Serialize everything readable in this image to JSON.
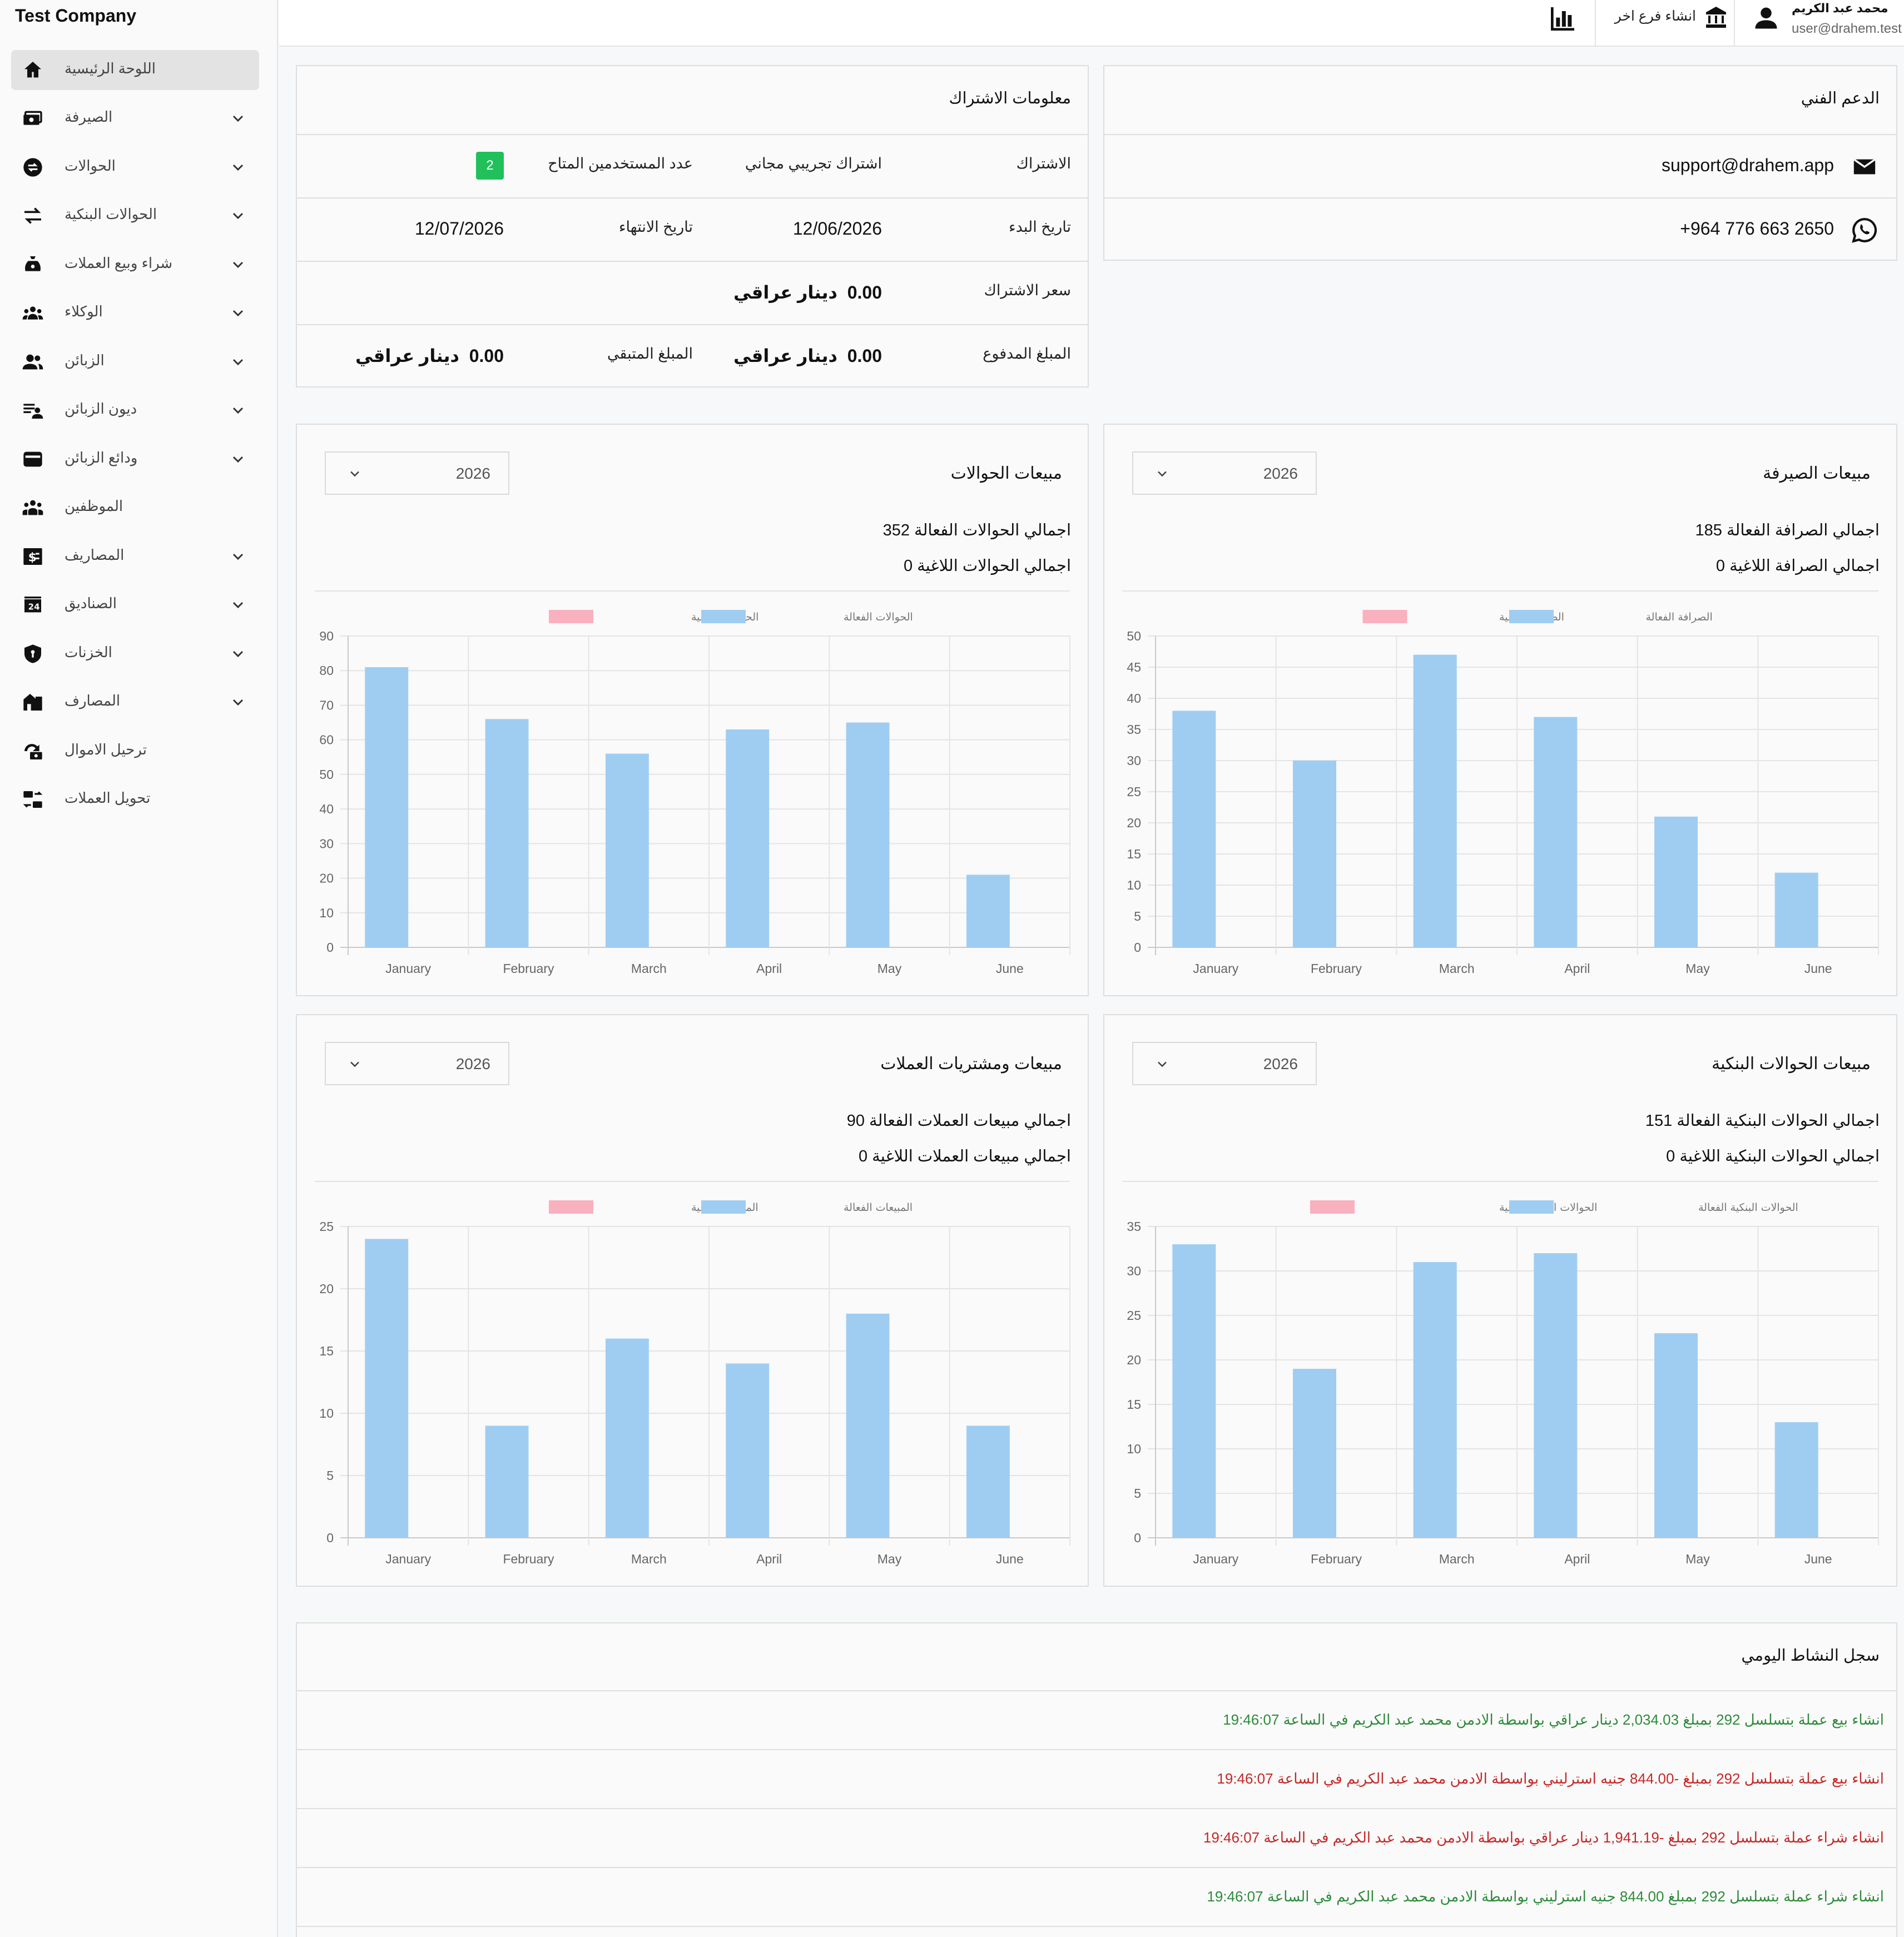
{
  "brand": "Test Company",
  "sidebar": {
    "items": [
      {
        "label": "اللوحة الرئيسية",
        "icon": "home-icon",
        "has_children": false,
        "active": true
      },
      {
        "label": "الصيرفة",
        "icon": "money-icon",
        "has_children": true
      },
      {
        "label": "الحوالات",
        "icon": "transfer-circle-icon",
        "has_children": true
      },
      {
        "label": "الحوالات البنكية",
        "icon": "swap-icon",
        "has_children": true
      },
      {
        "label": "شراء وبيع العملات",
        "icon": "money-bag-icon",
        "has_children": true
      },
      {
        "label": "الوكلاء",
        "icon": "group-icon",
        "has_children": true
      },
      {
        "label": "الزبائن",
        "icon": "people-icon",
        "has_children": true
      },
      {
        "label": "ديون الزبائن",
        "icon": "person-list-icon",
        "has_children": true
      },
      {
        "label": "ودائع الزبائن",
        "icon": "wallet-icon",
        "has_children": true
      },
      {
        "label": "الموظفين",
        "icon": "employees-icon",
        "has_children": false
      },
      {
        "label": "المصاريف",
        "icon": "dollar-box-icon",
        "has_children": true
      },
      {
        "label": "الصناديق",
        "icon": "safe-box-icon",
        "has_children": true
      },
      {
        "label": "الخزنات",
        "icon": "shield-icon",
        "has_children": true
      },
      {
        "label": "المصارف",
        "icon": "bank-store-icon",
        "has_children": true
      },
      {
        "label": "ترحيل الاموال",
        "icon": "money-move-icon",
        "has_children": false
      },
      {
        "label": "تحويل العملات",
        "icon": "currency-exchange-icon",
        "has_children": false
      }
    ]
  },
  "topbar": {
    "user_name": "محمد عبد الكريم",
    "user_email": "user@drahem.test",
    "new_branch_label": "انشاء فرع اخر",
    "user_icon": "person-icon",
    "branch_icon": "branch-icon",
    "reports_icon": "bar-chart-icon"
  },
  "support": {
    "title": "الدعم الفني",
    "email": "support@drahem.app",
    "phone": "+964 776 663 2650",
    "email_icon": "mail-icon",
    "phone_icon": "whatsapp-icon"
  },
  "subscription": {
    "title": "معلومات الاشتراك",
    "subscription_label": "الاشتراك",
    "subscription_value": "اشتراك تجريبي مجاني",
    "users_label": "عدد المستخدمين المتاح",
    "users_value": "2",
    "start_label": "تاريخ البدء",
    "start_value": "12/06/2026",
    "end_label": "تاريخ الانتهاء",
    "end_value": "12/07/2026",
    "price_label": "سعر الاشتراك",
    "price_value": "0.00",
    "paid_label": "المبلغ المدفوع",
    "paid_value": "0.00",
    "remaining_label": "المبلغ المتبقي",
    "remaining_value": "0.00",
    "currency": "دينار عراقي"
  },
  "charts": [
    {
      "title": "مبيعات الصيرفة",
      "year": "2026",
      "stat_active": "اجمالي الصرافة الفعالة 185",
      "stat_cancelled": "اجمالي الصرافة اللاغية 0",
      "legend_active": "الصرافة الفعالة",
      "legend_cancelled": "الصرافة اللاغية",
      "chart_data": {
        "type": "bar",
        "categories": [
          "January",
          "February",
          "March",
          "April",
          "May",
          "June"
        ],
        "series": [
          {
            "name": "الصرافة الفعالة",
            "values": [
              38,
              30,
              47,
              37,
              21,
              12
            ],
            "color": "#9fcdf2"
          },
          {
            "name": "الصرافة اللاغية",
            "values": [
              0,
              0,
              0,
              0,
              0,
              0
            ],
            "color": "#f9b0bf"
          }
        ],
        "ylim": [
          0,
          50
        ],
        "yticks": [
          0,
          5,
          10,
          15,
          20,
          25,
          30,
          35,
          40,
          45,
          50
        ],
        "grid": true,
        "legend": "top-center"
      }
    },
    {
      "title": "مبيعات الحوالات",
      "year": "2026",
      "stat_active": "اجمالي الحوالات الفعالة 352",
      "stat_cancelled": "اجمالي الحوالات اللاغية 0",
      "legend_active": "الحوالات الفعالة",
      "legend_cancelled": "الحوالات اللاغية",
      "chart_data": {
        "type": "bar",
        "categories": [
          "January",
          "February",
          "March",
          "April",
          "May",
          "June"
        ],
        "series": [
          {
            "name": "الحوالات الفعالة",
            "values": [
              81,
              66,
              56,
              63,
              65,
              21
            ],
            "color": "#9fcdf2"
          },
          {
            "name": "الحوالات اللاغية",
            "values": [
              0,
              0,
              0,
              0,
              0,
              0
            ],
            "color": "#f9b0bf"
          }
        ],
        "ylim": [
          0,
          90
        ],
        "yticks": [
          0,
          10,
          20,
          30,
          40,
          50,
          60,
          70,
          80,
          90
        ],
        "grid": true,
        "legend": "top-center"
      }
    },
    {
      "title": "مبيعات الحوالات البنكية",
      "year": "2026",
      "stat_active": "اجمالي الحوالات البنكية الفعالة 151",
      "stat_cancelled": "اجمالي الحوالات البنكية اللاغية 0",
      "legend_active": "الحوالات البنكية الفعالة",
      "legend_cancelled": "الحوالات البنكية اللاغية",
      "chart_data": {
        "type": "bar",
        "categories": [
          "January",
          "February",
          "March",
          "April",
          "May",
          "June"
        ],
        "series": [
          {
            "name": "الحوالات البنكية الفعالة",
            "values": [
              33,
              19,
              31,
              32,
              23,
              13
            ],
            "color": "#9fcdf2"
          },
          {
            "name": "الحوالات البنكية اللاغية",
            "values": [
              0,
              0,
              0,
              0,
              0,
              0
            ],
            "color": "#f9b0bf"
          }
        ],
        "ylim": [
          0,
          35
        ],
        "yticks": [
          0,
          5,
          10,
          15,
          20,
          25,
          30,
          35
        ],
        "grid": true,
        "legend": "top-center"
      }
    },
    {
      "title": "مبيعات ومشتريات العملات",
      "year": "2026",
      "stat_active": "اجمالي مبيعات العملات الفعالة 90",
      "stat_cancelled": "اجمالي مبيعات العملات اللاغية 0",
      "legend_active": "المبيعات الفعالة",
      "legend_cancelled": "المبيعات اللاغية",
      "chart_data": {
        "type": "bar",
        "categories": [
          "January",
          "February",
          "March",
          "April",
          "May",
          "June"
        ],
        "series": [
          {
            "name": "المبيعات الفعالة",
            "values": [
              24,
              9,
              16,
              14,
              18,
              9
            ],
            "color": "#9fcdf2"
          },
          {
            "name": "المبيعات اللاغية",
            "values": [
              0,
              0,
              0,
              0,
              0,
              0
            ],
            "color": "#f9b0bf"
          }
        ],
        "ylim": [
          0,
          25
        ],
        "yticks": [
          0,
          5,
          10,
          15,
          20,
          25
        ],
        "grid": true,
        "legend": "top-center"
      }
    }
  ],
  "activity": {
    "title": "سجل النشاط اليومي",
    "color_positive": "#2e8b3a",
    "color_negative": "#c62828",
    "entries": [
      {
        "text": "انشاء  بيع عملة  بتسلسل  292  بمبلغ  2,034.03  دينار عراقي  بواسطة الادمن  محمد عبد الكريم  في الساعة  19:46:07",
        "tone": "positive"
      },
      {
        "text": "انشاء  بيع عملة  بتسلسل  292  بمبلغ  -844.00  جنيه استرليني  بواسطة الادمن  محمد عبد الكريم  في الساعة  19:46:07",
        "tone": "negative"
      },
      {
        "text": "انشاء  شراء عملة  بتسلسل  292  بمبلغ  -1,941.19  دينار عراقي  بواسطة الادمن  محمد عبد الكريم  في الساعة  19:46:07",
        "tone": "negative"
      },
      {
        "text": "انشاء  شراء عملة  بتسلسل  292  بمبلغ  844.00  جنيه استرليني  بواسطة الادمن  محمد عبد الكريم  في الساعة  19:46:07",
        "tone": "positive"
      }
    ]
  }
}
